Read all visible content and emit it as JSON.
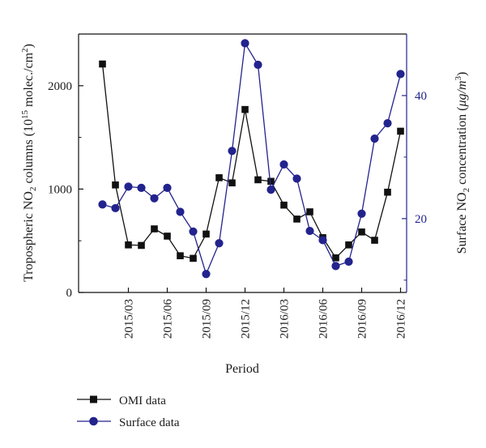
{
  "colors": {
    "omi": "#111111",
    "surface": "#23238e",
    "left_axis": "#111111",
    "right_axis": "#23238e"
  },
  "chart_data": {
    "type": "line",
    "xlabel": "Period",
    "ylabel_left": {
      "main": "Tropospheric NO",
      "sub": "2",
      "rest": " columns (10",
      "sup": "15",
      "tail": " molec./cm",
      "sup2": "2",
      "close": ")"
    },
    "ylabel_right": {
      "main": "Surface NO",
      "sub": "2",
      "rest": " concentration (",
      "unit": "μg/m",
      "sup": "3",
      "close": ")"
    },
    "x_index_range": [
      0,
      24
    ],
    "x_tick_labels": [
      {
        "i": 2,
        "label": "2015/03"
      },
      {
        "i": 5,
        "label": "2015/06"
      },
      {
        "i": 8,
        "label": "2015/09"
      },
      {
        "i": 11,
        "label": "2015/12"
      },
      {
        "i": 14,
        "label": "2016/03"
      },
      {
        "i": 17,
        "label": "2016/06"
      },
      {
        "i": 20,
        "label": "2016/09"
      },
      {
        "i": 23,
        "label": "2016/12"
      }
    ],
    "ylim_left": [
      0,
      2500
    ],
    "yticks_left": [
      0,
      1000,
      2000
    ],
    "ylim_right": [
      8,
      50
    ],
    "yticks_right": [
      20,
      40
    ],
    "series": [
      {
        "name": "OMI data",
        "axis": "left",
        "marker": "square",
        "values": [
          2210,
          1040,
          460,
          455,
          615,
          545,
          355,
          330,
          565,
          1110,
          1060,
          1770,
          1090,
          1075,
          845,
          710,
          780,
          530,
          335,
          460,
          585,
          505,
          970,
          1560
        ]
      },
      {
        "name": "Surface data",
        "axis": "right",
        "marker": "circle",
        "values": [
          22.3,
          21.7,
          25.2,
          25.0,
          23.3,
          25.0,
          21.1,
          17.9,
          11.0,
          16.0,
          31.0,
          48.5,
          45.0,
          24.7,
          28.8,
          26.5,
          18.0,
          16.5,
          12.3,
          13.0,
          20.8,
          33.0,
          35.5,
          43.5
        ]
      }
    ],
    "legend_placement": "bottom-left",
    "grid": false
  }
}
